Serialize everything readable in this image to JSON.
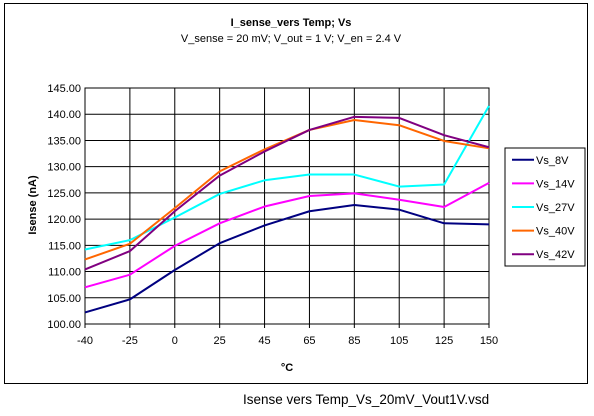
{
  "chart_data": {
    "type": "line",
    "title": "I_sense_vers Temp; Vs",
    "subtitle": "V_sense = 20 mV; V_out = 1 V; V_en = 2.4 V",
    "xlabel": "°C",
    "ylabel": "Isense (nA)",
    "categories": [
      "-40",
      "-25",
      "0",
      "25",
      "45",
      "65",
      "85",
      "105",
      "125",
      "150"
    ],
    "ylim": [
      100,
      145
    ],
    "ytick_labels": [
      "100.00",
      "105.00",
      "110.00",
      "115.00",
      "120.00",
      "125.00",
      "130.00",
      "135.00",
      "140.00",
      "145.00"
    ],
    "grid": true,
    "legend_position": "right",
    "series": [
      {
        "name": "Vs_8V",
        "color": "#000080",
        "values": [
          102.2,
          104.7,
          110.3,
          115.4,
          118.8,
          121.5,
          122.7,
          121.8,
          119.2,
          119.0
        ]
      },
      {
        "name": "Vs_14V",
        "color": "#ff00ff",
        "values": [
          107.0,
          109.4,
          114.9,
          119.2,
          122.4,
          124.4,
          124.9,
          123.7,
          122.3,
          126.9
        ]
      },
      {
        "name": "Vs_27V",
        "color": "#00ffff",
        "values": [
          114.2,
          116.0,
          120.3,
          124.8,
          127.4,
          128.5,
          128.5,
          126.2,
          126.6,
          141.6
        ]
      },
      {
        "name": "Vs_40V",
        "color": "#ff6600",
        "values": [
          112.3,
          115.3,
          122.1,
          129.1,
          133.3,
          137.0,
          138.9,
          137.9,
          134.9,
          133.5
        ]
      },
      {
        "name": "Vs_42V",
        "color": "#800080",
        "values": [
          110.4,
          113.9,
          121.5,
          128.3,
          132.9,
          137.0,
          139.5,
          139.3,
          136.0,
          133.7
        ]
      }
    ]
  },
  "file_label": "Isense vers Temp_Vs_20mV_Vout1V.vsd"
}
